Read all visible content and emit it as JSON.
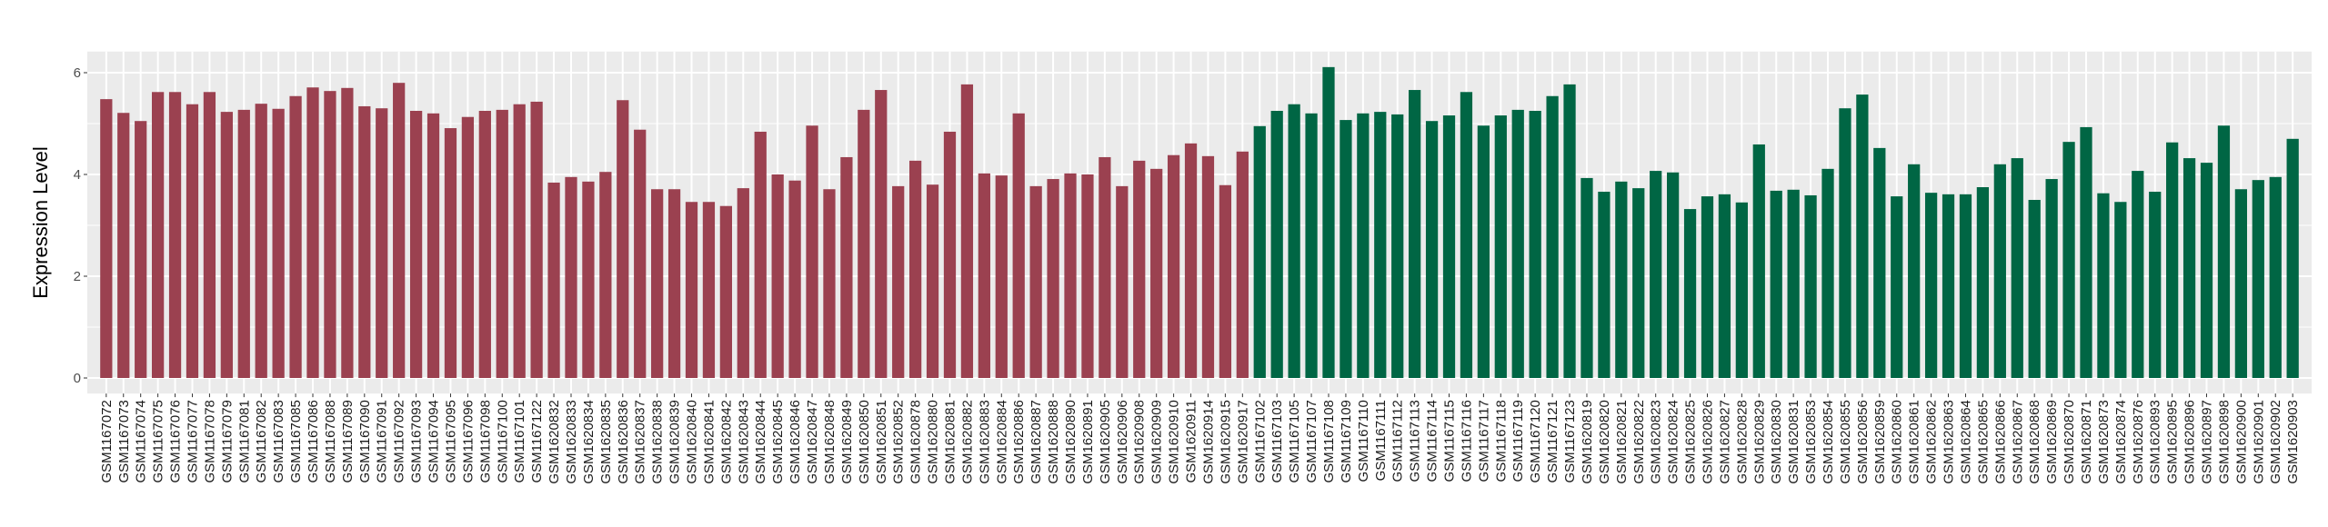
{
  "chart_data": {
    "type": "bar",
    "title": "",
    "xlabel": "",
    "ylabel": "Expression Level",
    "ylim": [
      0,
      6.11
    ],
    "yticks": [
      0,
      2,
      4,
      6
    ],
    "grid": true,
    "legend": "none",
    "colors": {
      "group1": "#9b4150",
      "group2": "#006644",
      "panel": "#ebebeb",
      "grid": "#ffffff"
    },
    "categories": [
      "GSM1167072",
      "GSM1167073",
      "GSM1167074",
      "GSM1167075",
      "GSM1167076",
      "GSM1167077",
      "GSM1167078",
      "GSM1167079",
      "GSM1167081",
      "GSM1167082",
      "GSM1167083",
      "GSM1167085",
      "GSM1167086",
      "GSM1167088",
      "GSM1167089",
      "GSM1167090",
      "GSM1167091",
      "GSM1167092",
      "GSM1167093",
      "GSM1167094",
      "GSM1167095",
      "GSM1167096",
      "GSM1167098",
      "GSM1167100",
      "GSM1167101",
      "GSM1167122",
      "GSM1620832",
      "GSM1620833",
      "GSM1620834",
      "GSM1620835",
      "GSM1620836",
      "GSM1620837",
      "GSM1620838",
      "GSM1620839",
      "GSM1620840",
      "GSM1620841",
      "GSM1620842",
      "GSM1620843",
      "GSM1620844",
      "GSM1620845",
      "GSM1620846",
      "GSM1620847",
      "GSM1620848",
      "GSM1620849",
      "GSM1620850",
      "GSM1620851",
      "GSM1620852",
      "GSM1620878",
      "GSM1620880",
      "GSM1620881",
      "GSM1620882",
      "GSM1620883",
      "GSM1620884",
      "GSM1620886",
      "GSM1620887",
      "GSM1620888",
      "GSM1620890",
      "GSM1620891",
      "GSM1620905",
      "GSM1620906",
      "GSM1620908",
      "GSM1620909",
      "GSM1620910",
      "GSM1620911",
      "GSM1620914",
      "GSM1620915",
      "GSM1620917",
      "GSM1167102",
      "GSM1167103",
      "GSM1167105",
      "GSM1167107",
      "GSM1167108",
      "GSM1167109",
      "GSM1167110",
      "GSM1167111",
      "GSM1167112",
      "GSM1167113",
      "GSM1167114",
      "GSM1167115",
      "GSM1167116",
      "GSM1167117",
      "GSM1167118",
      "GSM1167119",
      "GSM1167120",
      "GSM1167121",
      "GSM1167123",
      "GSM1620819",
      "GSM1620820",
      "GSM1620821",
      "GSM1620822",
      "GSM1620823",
      "GSM1620824",
      "GSM1620825",
      "GSM1620826",
      "GSM1620827",
      "GSM1620828",
      "GSM1620829",
      "GSM1620830",
      "GSM1620831",
      "GSM1620853",
      "GSM1620854",
      "GSM1620855",
      "GSM1620856",
      "GSM1620859",
      "GSM1620860",
      "GSM1620861",
      "GSM1620862",
      "GSM1620863",
      "GSM1620864",
      "GSM1620865",
      "GSM1620866",
      "GSM1620867",
      "GSM1620868",
      "GSM1620869",
      "GSM1620870",
      "GSM1620871",
      "GSM1620873",
      "GSM1620874",
      "GSM1620876",
      "GSM1620893",
      "GSM1620895",
      "GSM1620896",
      "GSM1620897",
      "GSM1620898",
      "GSM1620900",
      "GSM1620901",
      "GSM1620902",
      "GSM1620903"
    ],
    "values": [
      5.48,
      5.21,
      5.05,
      5.62,
      5.62,
      5.38,
      5.62,
      5.23,
      5.27,
      5.39,
      5.29,
      5.54,
      5.71,
      5.64,
      5.7,
      5.34,
      5.3,
      5.8,
      5.25,
      5.2,
      4.91,
      5.13,
      5.25,
      5.27,
      5.38,
      5.43,
      3.84,
      3.95,
      3.86,
      4.05,
      5.46,
      4.88,
      3.71,
      3.71,
      3.46,
      3.46,
      3.38,
      3.73,
      4.84,
      4.0,
      3.88,
      4.96,
      3.71,
      4.34,
      5.27,
      5.66,
      3.77,
      4.27,
      3.8,
      4.84,
      5.77,
      4.02,
      3.98,
      5.2,
      3.77,
      3.91,
      4.02,
      4.0,
      4.34,
      3.77,
      4.27,
      4.11,
      4.38,
      4.61,
      4.36,
      3.79,
      4.45,
      4.95,
      5.25,
      5.38,
      5.2,
      6.11,
      5.07,
      5.2,
      5.23,
      5.18,
      5.66,
      5.05,
      5.16,
      5.62,
      4.96,
      5.16,
      5.27,
      5.25,
      5.54,
      5.77,
      3.93,
      3.66,
      3.86,
      3.73,
      4.07,
      4.04,
      3.32,
      3.57,
      3.61,
      3.45,
      4.59,
      3.68,
      3.7,
      3.59,
      4.11,
      5.3,
      5.57,
      4.52,
      3.57,
      4.2,
      3.64,
      3.61,
      3.61,
      3.75,
      4.2,
      4.32,
      3.5,
      3.91,
      4.64,
      4.93,
      3.63,
      3.46,
      4.07,
      3.66,
      4.63,
      4.32,
      4.23,
      4.96,
      3.71,
      3.89,
      3.95,
      4.7
    ],
    "groups": {
      "group1_count": 67,
      "group2_count": 61
    }
  }
}
